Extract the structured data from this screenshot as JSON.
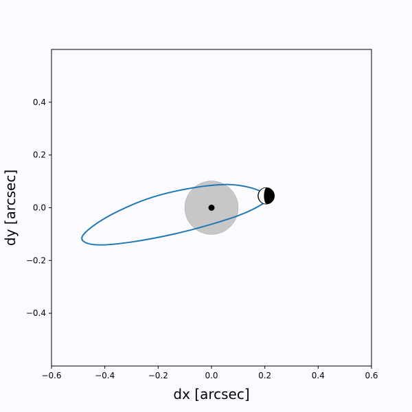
{
  "chart_data": {
    "type": "line",
    "xlabel": "dx [arcsec]",
    "ylabel": "dy [arcsec]",
    "xlim": [
      -0.6,
      0.6
    ],
    "ylim": [
      -0.6,
      0.6
    ],
    "xticks": [
      "−0.6",
      "−0.4",
      "−0.2",
      "0.0",
      "0.2",
      "0.4",
      "0.6"
    ],
    "yticks": [
      "−0.4",
      "−0.2",
      "0.0",
      "0.2",
      "0.4"
    ],
    "grid": false,
    "series": [
      {
        "kind": "orbit",
        "color": "#1f77b4",
        "x": [
          0.21,
          0.15,
          0.05,
          -0.1,
          -0.25,
          -0.4,
          -0.485,
          -0.44,
          -0.3,
          -0.1,
          0.1,
          0.2,
          0.21
        ],
        "y": [
          0.045,
          0.075,
          0.088,
          0.07,
          0.03,
          -0.04,
          -0.11,
          -0.14,
          -0.13,
          -0.09,
          -0.03,
          0.02,
          0.045
        ]
      }
    ],
    "annotations": [
      {
        "kind": "shaded-disk",
        "x": 0.0,
        "y": 0.0,
        "radius": 0.1,
        "color": "#bdbdbd"
      },
      {
        "kind": "central-star",
        "x": 0.0,
        "y": 0.0,
        "color": "#000000"
      },
      {
        "kind": "planet-phase",
        "x": 0.205,
        "y": 0.045,
        "lit_side": "left",
        "dark_color": "#000000",
        "lit_color": "#ffffff"
      }
    ]
  }
}
